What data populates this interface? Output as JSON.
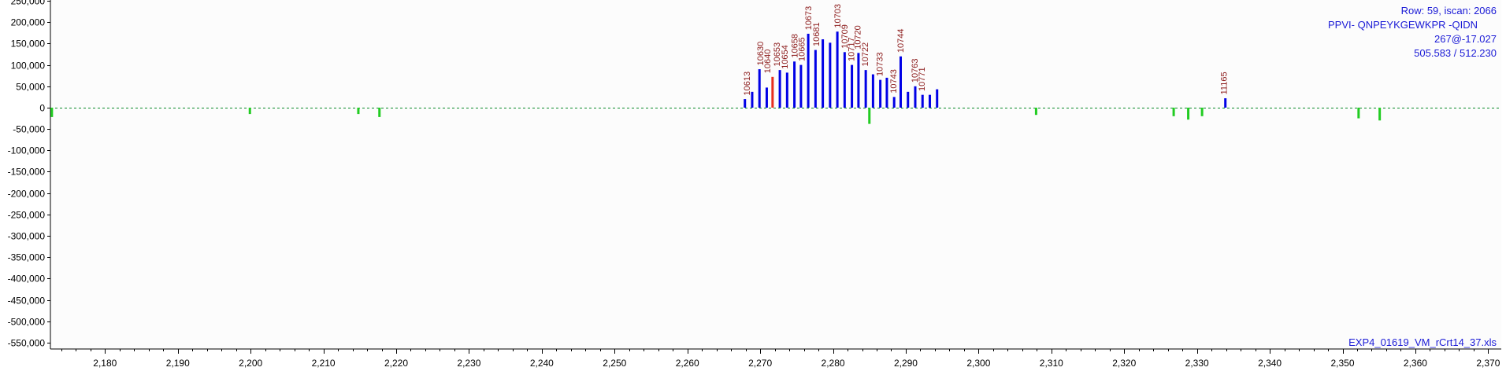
{
  "colors": {
    "background": "#ffffff",
    "plot_background": "#fcfcfc",
    "axis": "#000000",
    "baseline": "#0a8a2a",
    "positive_peak": "#0000e6",
    "highlight_peak": "#e62e1e",
    "negative_peak": "#22cc22",
    "annotation_text": "#8b1a1a",
    "info_text": "#1a1ad6"
  },
  "info": {
    "line1": "Row: 59, iscan: 2066",
    "line2": "PPVI- QNPEYKGEWKPR -QIDN",
    "line3": "267@-17.027",
    "line4": "505.583 / 512.230",
    "filename": "EXP4_01619_VM_rCrt14_37.xls"
  },
  "chart_data": {
    "type": "bar",
    "title": "",
    "xlabel": "",
    "ylabel": "",
    "xlim": [
      2172.5,
      2371.8
    ],
    "ylim": [
      -565000,
      252000
    ],
    "grid": false,
    "baseline": "dashed",
    "x_ticks": [
      2180,
      2190,
      2200,
      2210,
      2220,
      2230,
      2240,
      2250,
      2260,
      2270,
      2280,
      2290,
      2300,
      2310,
      2320,
      2330,
      2340,
      2350,
      2360,
      2370
    ],
    "x_tick_labels": [
      "2,180",
      "2,190",
      "2,200",
      "2,210",
      "2,220",
      "2,230",
      "2,240",
      "2,250",
      "2,260",
      "2,270",
      "2,280",
      "2,290",
      "2,300",
      "2,310",
      "2,320",
      "2,330",
      "2,340",
      "2,350",
      "2,360",
      "2,370"
    ],
    "y_ticks": [
      250000,
      200000,
      150000,
      100000,
      50000,
      0,
      -50000,
      -100000,
      -150000,
      -200000,
      -250000,
      -300000,
      -350000,
      -400000,
      -450000,
      -500000,
      -550000
    ],
    "y_tick_labels": [
      "250,000",
      "200,000",
      "150,000",
      "100,000",
      "50,000",
      "0",
      "-50,000",
      "-100,000",
      "-150,000",
      "-200,000",
      "-250,000",
      "-300,000",
      "-350,000",
      "-400,000",
      "-450,000",
      "-500,000",
      "-550,000"
    ],
    "series": [
      {
        "kind": "positive",
        "points": [
          {
            "x": 2267.9,
            "y": 20000
          },
          {
            "x": 2268.9,
            "y": 37000
          },
          {
            "x": 2269.9,
            "y": 90000
          },
          {
            "x": 2270.9,
            "y": 47000
          },
          {
            "x": 2271.7,
            "y": 72000,
            "highlight": true
          },
          {
            "x": 2272.7,
            "y": 88000
          },
          {
            "x": 2273.7,
            "y": 82000
          },
          {
            "x": 2274.7,
            "y": 108000
          },
          {
            "x": 2275.6,
            "y": 100000
          },
          {
            "x": 2276.6,
            "y": 173000
          },
          {
            "x": 2277.6,
            "y": 135000
          },
          {
            "x": 2278.6,
            "y": 160000
          },
          {
            "x": 2279.6,
            "y": 152000
          },
          {
            "x": 2280.6,
            "y": 178000
          },
          {
            "x": 2281.6,
            "y": 130000
          },
          {
            "x": 2282.6,
            "y": 100000
          },
          {
            "x": 2283.5,
            "y": 128000
          },
          {
            "x": 2284.5,
            "y": 88000
          },
          {
            "x": 2285.5,
            "y": 78000
          },
          {
            "x": 2286.5,
            "y": 65000
          },
          {
            "x": 2287.4,
            "y": 70000
          },
          {
            "x": 2288.4,
            "y": 25000
          },
          {
            "x": 2289.3,
            "y": 120000
          },
          {
            "x": 2290.3,
            "y": 37000
          },
          {
            "x": 2291.3,
            "y": 50000
          },
          {
            "x": 2292.3,
            "y": 30000
          },
          {
            "x": 2293.3,
            "y": 30000
          },
          {
            "x": 2294.3,
            "y": 43000
          },
          {
            "x": 2333.9,
            "y": 22000
          }
        ]
      },
      {
        "kind": "negative",
        "points": [
          {
            "x": 2172.7,
            "y": -22000
          },
          {
            "x": 2199.9,
            "y": -15000
          },
          {
            "x": 2214.8,
            "y": -15000
          },
          {
            "x": 2217.7,
            "y": -22000
          },
          {
            "x": 2285.0,
            "y": -38000
          },
          {
            "x": 2307.9,
            "y": -17000
          },
          {
            "x": 2326.8,
            "y": -20000
          },
          {
            "x": 2328.8,
            "y": -28000
          },
          {
            "x": 2330.7,
            "y": -20000
          },
          {
            "x": 2352.2,
            "y": -25000
          },
          {
            "x": 2355.1,
            "y": -30000
          }
        ]
      }
    ],
    "annotations": [
      {
        "x": 2268.6,
        "y": 23000,
        "label": "10613"
      },
      {
        "x": 2270.4,
        "y": 93000,
        "label": "10630"
      },
      {
        "x": 2271.4,
        "y": 75000,
        "label": "10640"
      },
      {
        "x": 2272.7,
        "y": 91000,
        "label": "10653"
      },
      {
        "x": 2273.8,
        "y": 85000,
        "label": "10654"
      },
      {
        "x": 2275.1,
        "y": 111000,
        "label": "10658"
      },
      {
        "x": 2276.1,
        "y": 103000,
        "label": "10665"
      },
      {
        "x": 2277.0,
        "y": 176000,
        "label": "10673"
      },
      {
        "x": 2278.1,
        "y": 138000,
        "label": "10681"
      },
      {
        "x": 2281.0,
        "y": 181000,
        "label": "10703"
      },
      {
        "x": 2282.0,
        "y": 133000,
        "label": "10709"
      },
      {
        "x": 2282.9,
        "y": 103000,
        "label": "10717"
      },
      {
        "x": 2283.8,
        "y": 131000,
        "label": "10720"
      },
      {
        "x": 2284.8,
        "y": 91000,
        "label": "10722"
      },
      {
        "x": 2286.8,
        "y": 68000,
        "label": "10733"
      },
      {
        "x": 2288.7,
        "y": 28000,
        "label": "10743"
      },
      {
        "x": 2289.7,
        "y": 123000,
        "label": "10744"
      },
      {
        "x": 2291.6,
        "y": 53000,
        "label": "10763"
      },
      {
        "x": 2292.6,
        "y": 33000,
        "label": "10771"
      },
      {
        "x": 2334.1,
        "y": 25000,
        "label": "11165"
      }
    ]
  }
}
